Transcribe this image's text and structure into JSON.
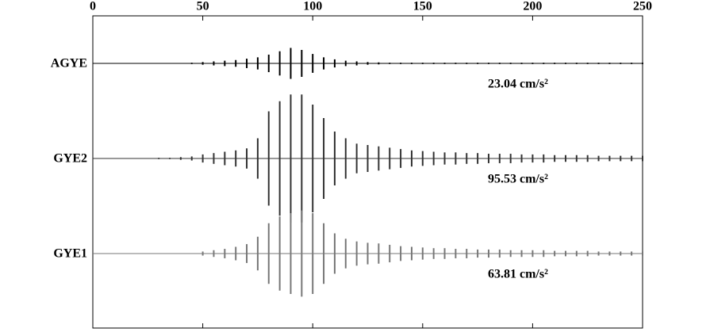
{
  "chart_data": {
    "type": "seismogram",
    "x": [
      0,
      5,
      10,
      15,
      20,
      25,
      30,
      35,
      40,
      45,
      50,
      55,
      60,
      65,
      70,
      75,
      80,
      85,
      90,
      95,
      100,
      105,
      110,
      115,
      120,
      125,
      130,
      135,
      140,
      145,
      150,
      155,
      160,
      165,
      170,
      175,
      180,
      185,
      190,
      195,
      200,
      205,
      210,
      215,
      220,
      225,
      230,
      235,
      240,
      245,
      250
    ],
    "xlim": [
      0,
      250
    ],
    "xticks": [
      0,
      50,
      100,
      150,
      200,
      250
    ],
    "ylim": [
      -100,
      100
    ],
    "series": [
      {
        "name": "AGYE",
        "color": "#000000",
        "annotation": "23.04 cm/s²",
        "values": [
          0,
          0,
          0,
          0,
          0,
          0,
          0,
          0,
          0,
          1,
          2,
          3,
          4,
          5,
          7,
          9,
          13,
          18,
          23,
          20,
          14,
          9,
          6,
          4,
          3,
          2,
          1.5,
          1,
          1,
          1,
          1,
          1,
          1,
          1,
          1,
          1,
          1,
          1,
          1,
          1,
          1,
          1,
          1,
          1,
          1,
          1,
          1,
          1,
          1,
          1,
          1
        ]
      },
      {
        "name": "GYE2",
        "color": "#333333",
        "annotation": "95.53 cm/s²",
        "values": [
          0,
          0,
          0,
          0,
          0,
          0,
          1,
          1,
          2,
          3,
          6,
          8,
          10,
          12,
          15,
          30,
          70,
          85,
          95,
          95,
          80,
          60,
          40,
          30,
          22,
          20,
          18,
          16,
          14,
          12,
          11,
          10,
          9,
          9,
          8,
          8,
          7,
          7,
          7,
          6,
          6,
          6,
          5,
          5,
          5,
          5,
          4,
          4,
          4,
          4,
          4
        ]
      },
      {
        "name": "GYE1",
        "color": "#777777",
        "annotation": "63.81 cm/s²",
        "values": [
          0,
          0,
          0,
          0,
          0,
          0,
          0,
          0,
          0,
          0,
          3,
          5,
          7,
          10,
          14,
          25,
          45,
          55,
          60,
          64,
          60,
          45,
          30,
          22,
          18,
          16,
          15,
          13,
          11,
          10,
          9,
          8,
          8,
          7,
          7,
          6,
          6,
          6,
          5,
          5,
          5,
          5,
          4,
          4,
          4,
          4,
          3,
          3,
          3,
          3,
          3
        ]
      }
    ]
  }
}
